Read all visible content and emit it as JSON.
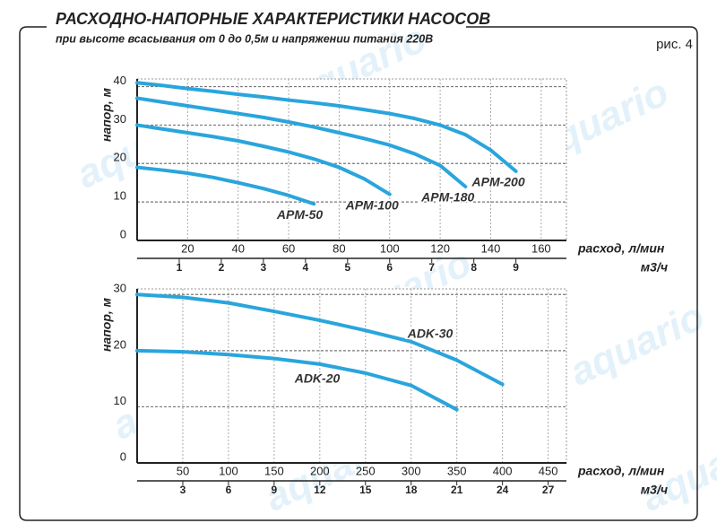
{
  "header": {
    "title": "РАСХОДНО-НАПОРНЫЕ ХАРАКТЕРИСТИКИ НАСОСОВ",
    "subtitle": "при высоте всасывания от 0 до 0,5м и напряжении питания 220В",
    "figure": "рис. 4",
    "watermark": "aquario"
  },
  "chart_data": [
    {
      "type": "line",
      "ylabel": "напор, м",
      "xlabel": "расход, л/мин",
      "x2label": "м3/ч",
      "x": [
        0,
        10,
        20,
        30,
        40,
        50,
        60,
        70,
        80,
        90,
        100,
        110,
        120,
        130,
        140,
        150
      ],
      "series": [
        {
          "name": "АРМ-50",
          "color": "#2aa5dc",
          "values": [
            19,
            18.3,
            17.5,
            16.4,
            15,
            13.5,
            11.7,
            9.5,
            null,
            null,
            null,
            null,
            null,
            null,
            null,
            null
          ]
        },
        {
          "name": "АРМ-100",
          "color": "#2aa5dc",
          "values": [
            30,
            29,
            28,
            27,
            25.9,
            24.5,
            23,
            21.2,
            19,
            16,
            12,
            null,
            null,
            null,
            null,
            null
          ]
        },
        {
          "name": "АРМ-180",
          "color": "#2aa5dc",
          "values": [
            37,
            36,
            35,
            34,
            33,
            32,
            30.8,
            29.5,
            28,
            26.5,
            24.8,
            22.5,
            19.5,
            14,
            null,
            null
          ]
        },
        {
          "name": "АРМ-200",
          "color": "#2aa5dc",
          "values": [
            41,
            40.3,
            39.5,
            38.8,
            38,
            37.3,
            36.5,
            35.8,
            35,
            34,
            33,
            31.7,
            30,
            27.5,
            23.5,
            18
          ]
        }
      ],
      "xlim": [
        0,
        170
      ],
      "xticks": [
        20,
        40,
        60,
        80,
        100,
        120,
        140,
        160
      ],
      "x2lim": [
        0,
        10.2
      ],
      "x2ticks": [
        1,
        2,
        3,
        4,
        5,
        6,
        7,
        8,
        9
      ],
      "ylim": [
        0,
        42
      ],
      "yticks": [
        0,
        10,
        20,
        30,
        40
      ],
      "grid": true
    },
    {
      "type": "line",
      "ylabel": "напор, м",
      "xlabel": "расход, л/мин",
      "x2label": "м3/ч",
      "x": [
        0,
        50,
        100,
        150,
        200,
        250,
        300,
        350,
        400
      ],
      "series": [
        {
          "name": "ADK-30",
          "color": "#2aa5dc",
          "values": [
            30,
            29.5,
            28.5,
            27,
            25.4,
            23.6,
            21.6,
            18.3,
            14
          ]
        },
        {
          "name": "ADK-20",
          "color": "#2aa5dc",
          "values": [
            20,
            19.8,
            19.3,
            18.6,
            17.6,
            16,
            13.8,
            9.5,
            null
          ]
        }
      ],
      "xlim": [
        0,
        470
      ],
      "xticks": [
        50,
        100,
        150,
        200,
        250,
        300,
        350,
        400,
        450
      ],
      "x2lim": [
        0,
        28.2
      ],
      "x2ticks": [
        3,
        6,
        9,
        12,
        15,
        18,
        21,
        24,
        27
      ],
      "ylim": [
        0,
        31
      ],
      "yticks": [
        0,
        10,
        20,
        30
      ],
      "grid": true
    }
  ]
}
